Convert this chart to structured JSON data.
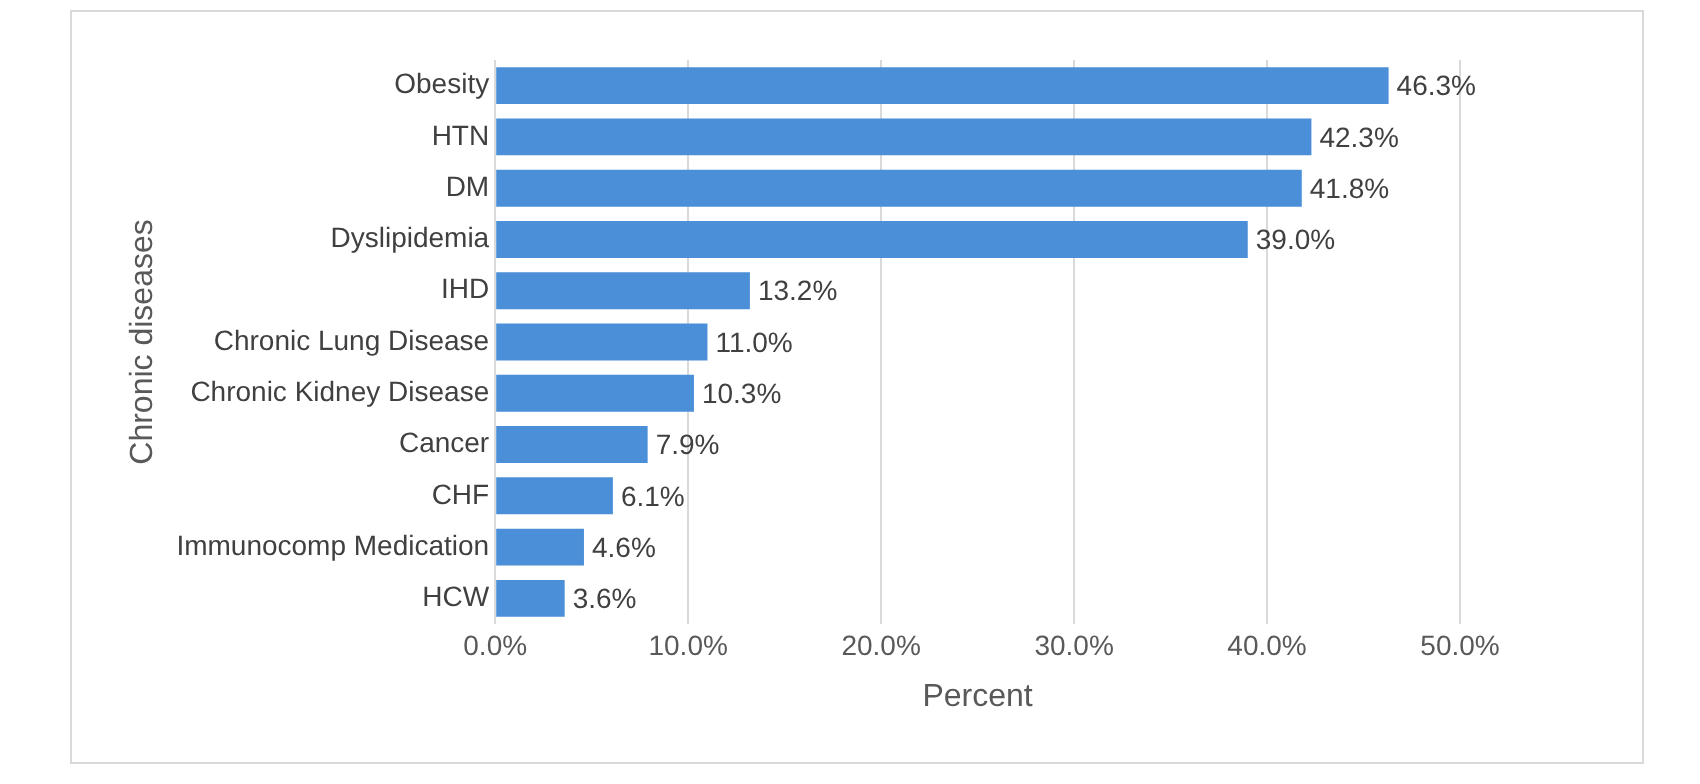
{
  "chart_data": {
    "type": "bar",
    "orientation": "horizontal",
    "xlabel": "Percent",
    "ylabel": "Chronic diseases",
    "categories": [
      "Obesity",
      "HTN",
      "DM",
      "Dyslipidemia",
      "IHD",
      "Chronic Lung Disease",
      "Chronic Kidney Disease",
      "Cancer",
      "CHF",
      "Immunocomp Medication",
      "HCW"
    ],
    "values": [
      46.3,
      42.3,
      41.8,
      39.0,
      13.2,
      11.0,
      10.3,
      7.9,
      6.1,
      4.6,
      3.6
    ],
    "value_labels": [
      "46.3%",
      "42.3%",
      "41.8%",
      "39.0%",
      "13.2%",
      "11.0%",
      "10.3%",
      "7.9%",
      "6.1%",
      "4.6%",
      "3.6%"
    ],
    "color": "#4a8fd8",
    "xlim": [
      0,
      50
    ],
    "xticks": [
      {
        "value": 0,
        "label": "0.0%"
      },
      {
        "value": 10,
        "label": "10.0%"
      },
      {
        "value": 20,
        "label": "20.0%"
      },
      {
        "value": 30,
        "label": "30.0%"
      },
      {
        "value": 40,
        "label": "40.0%"
      },
      {
        "value": 50,
        "label": "50.0%"
      }
    ],
    "grid": "x",
    "legend": false
  }
}
